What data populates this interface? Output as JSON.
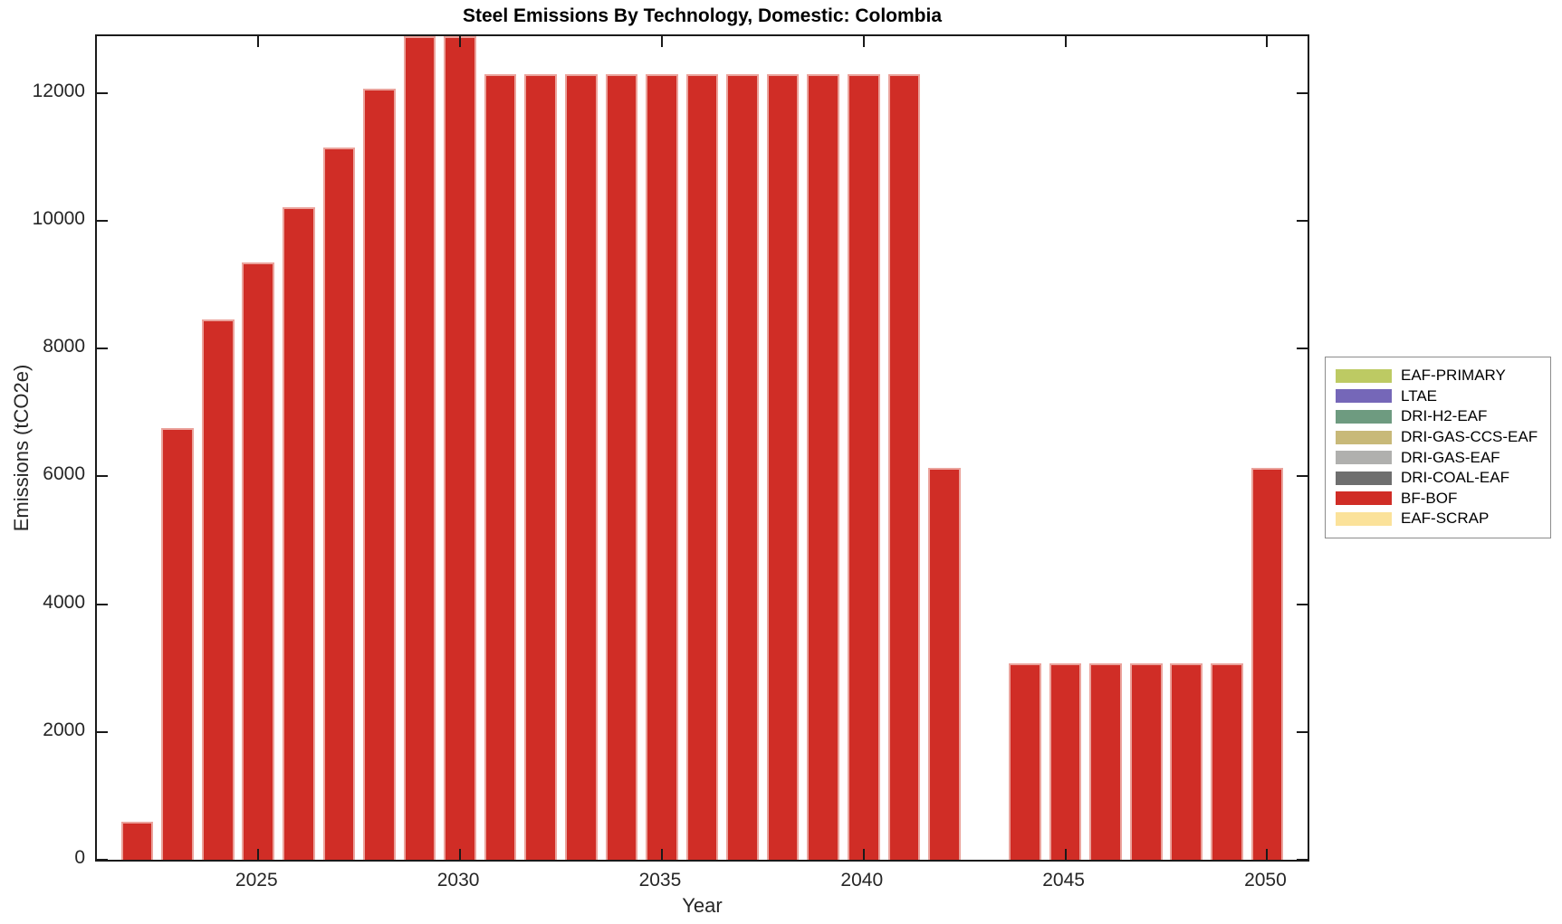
{
  "chart_data": {
    "type": "bar",
    "title": "Steel Emissions By Technology, Domestic: Colombia",
    "xlabel": "Year",
    "ylabel": "Emissions (tCO2e)",
    "x": [
      2022,
      2023,
      2024,
      2025,
      2026,
      2027,
      2028,
      2029,
      2030,
      2031,
      2032,
      2033,
      2034,
      2035,
      2036,
      2037,
      2038,
      2039,
      2040,
      2041,
      2042,
      2043,
      2044,
      2045,
      2046,
      2047,
      2048,
      2049,
      2050
    ],
    "series": [
      {
        "name": "BF-BOF",
        "color": "#d02d26",
        "values": [
          600,
          6760,
          8450,
          9350,
          10210,
          11150,
          12070,
          12890,
          12890,
          12290,
          12290,
          12290,
          12290,
          12290,
          12290,
          12290,
          12290,
          12290,
          12290,
          12290,
          6140,
          0,
          3080,
          3080,
          3080,
          3080,
          3080,
          3080,
          6140
        ]
      }
    ],
    "xlim": [
      2021,
      2051
    ],
    "ylim": [
      0,
      12890
    ],
    "xticks": [
      2025,
      2030,
      2035,
      2040,
      2045,
      2050
    ],
    "yticks": [
      0,
      2000,
      4000,
      6000,
      8000,
      10000,
      12000
    ],
    "grid": false,
    "legend_position": "right-outside"
  },
  "legend": {
    "items": [
      {
        "label": "EAF-PRIMARY",
        "color": "#bdca63"
      },
      {
        "label": "LTAE",
        "color": "#7567b8"
      },
      {
        "label": "DRI-H2-EAF",
        "color": "#6e9b80"
      },
      {
        "label": "DRI-GAS-CCS-EAF",
        "color": "#c8b979"
      },
      {
        "label": "DRI-GAS-EAF",
        "color": "#b0b0ae"
      },
      {
        "label": "DRI-COAL-EAF",
        "color": "#6f6f6f"
      },
      {
        "label": "BF-BOF",
        "color": "#d02d26"
      },
      {
        "label": "EAF-SCRAP",
        "color": "#fbe29a"
      }
    ]
  }
}
